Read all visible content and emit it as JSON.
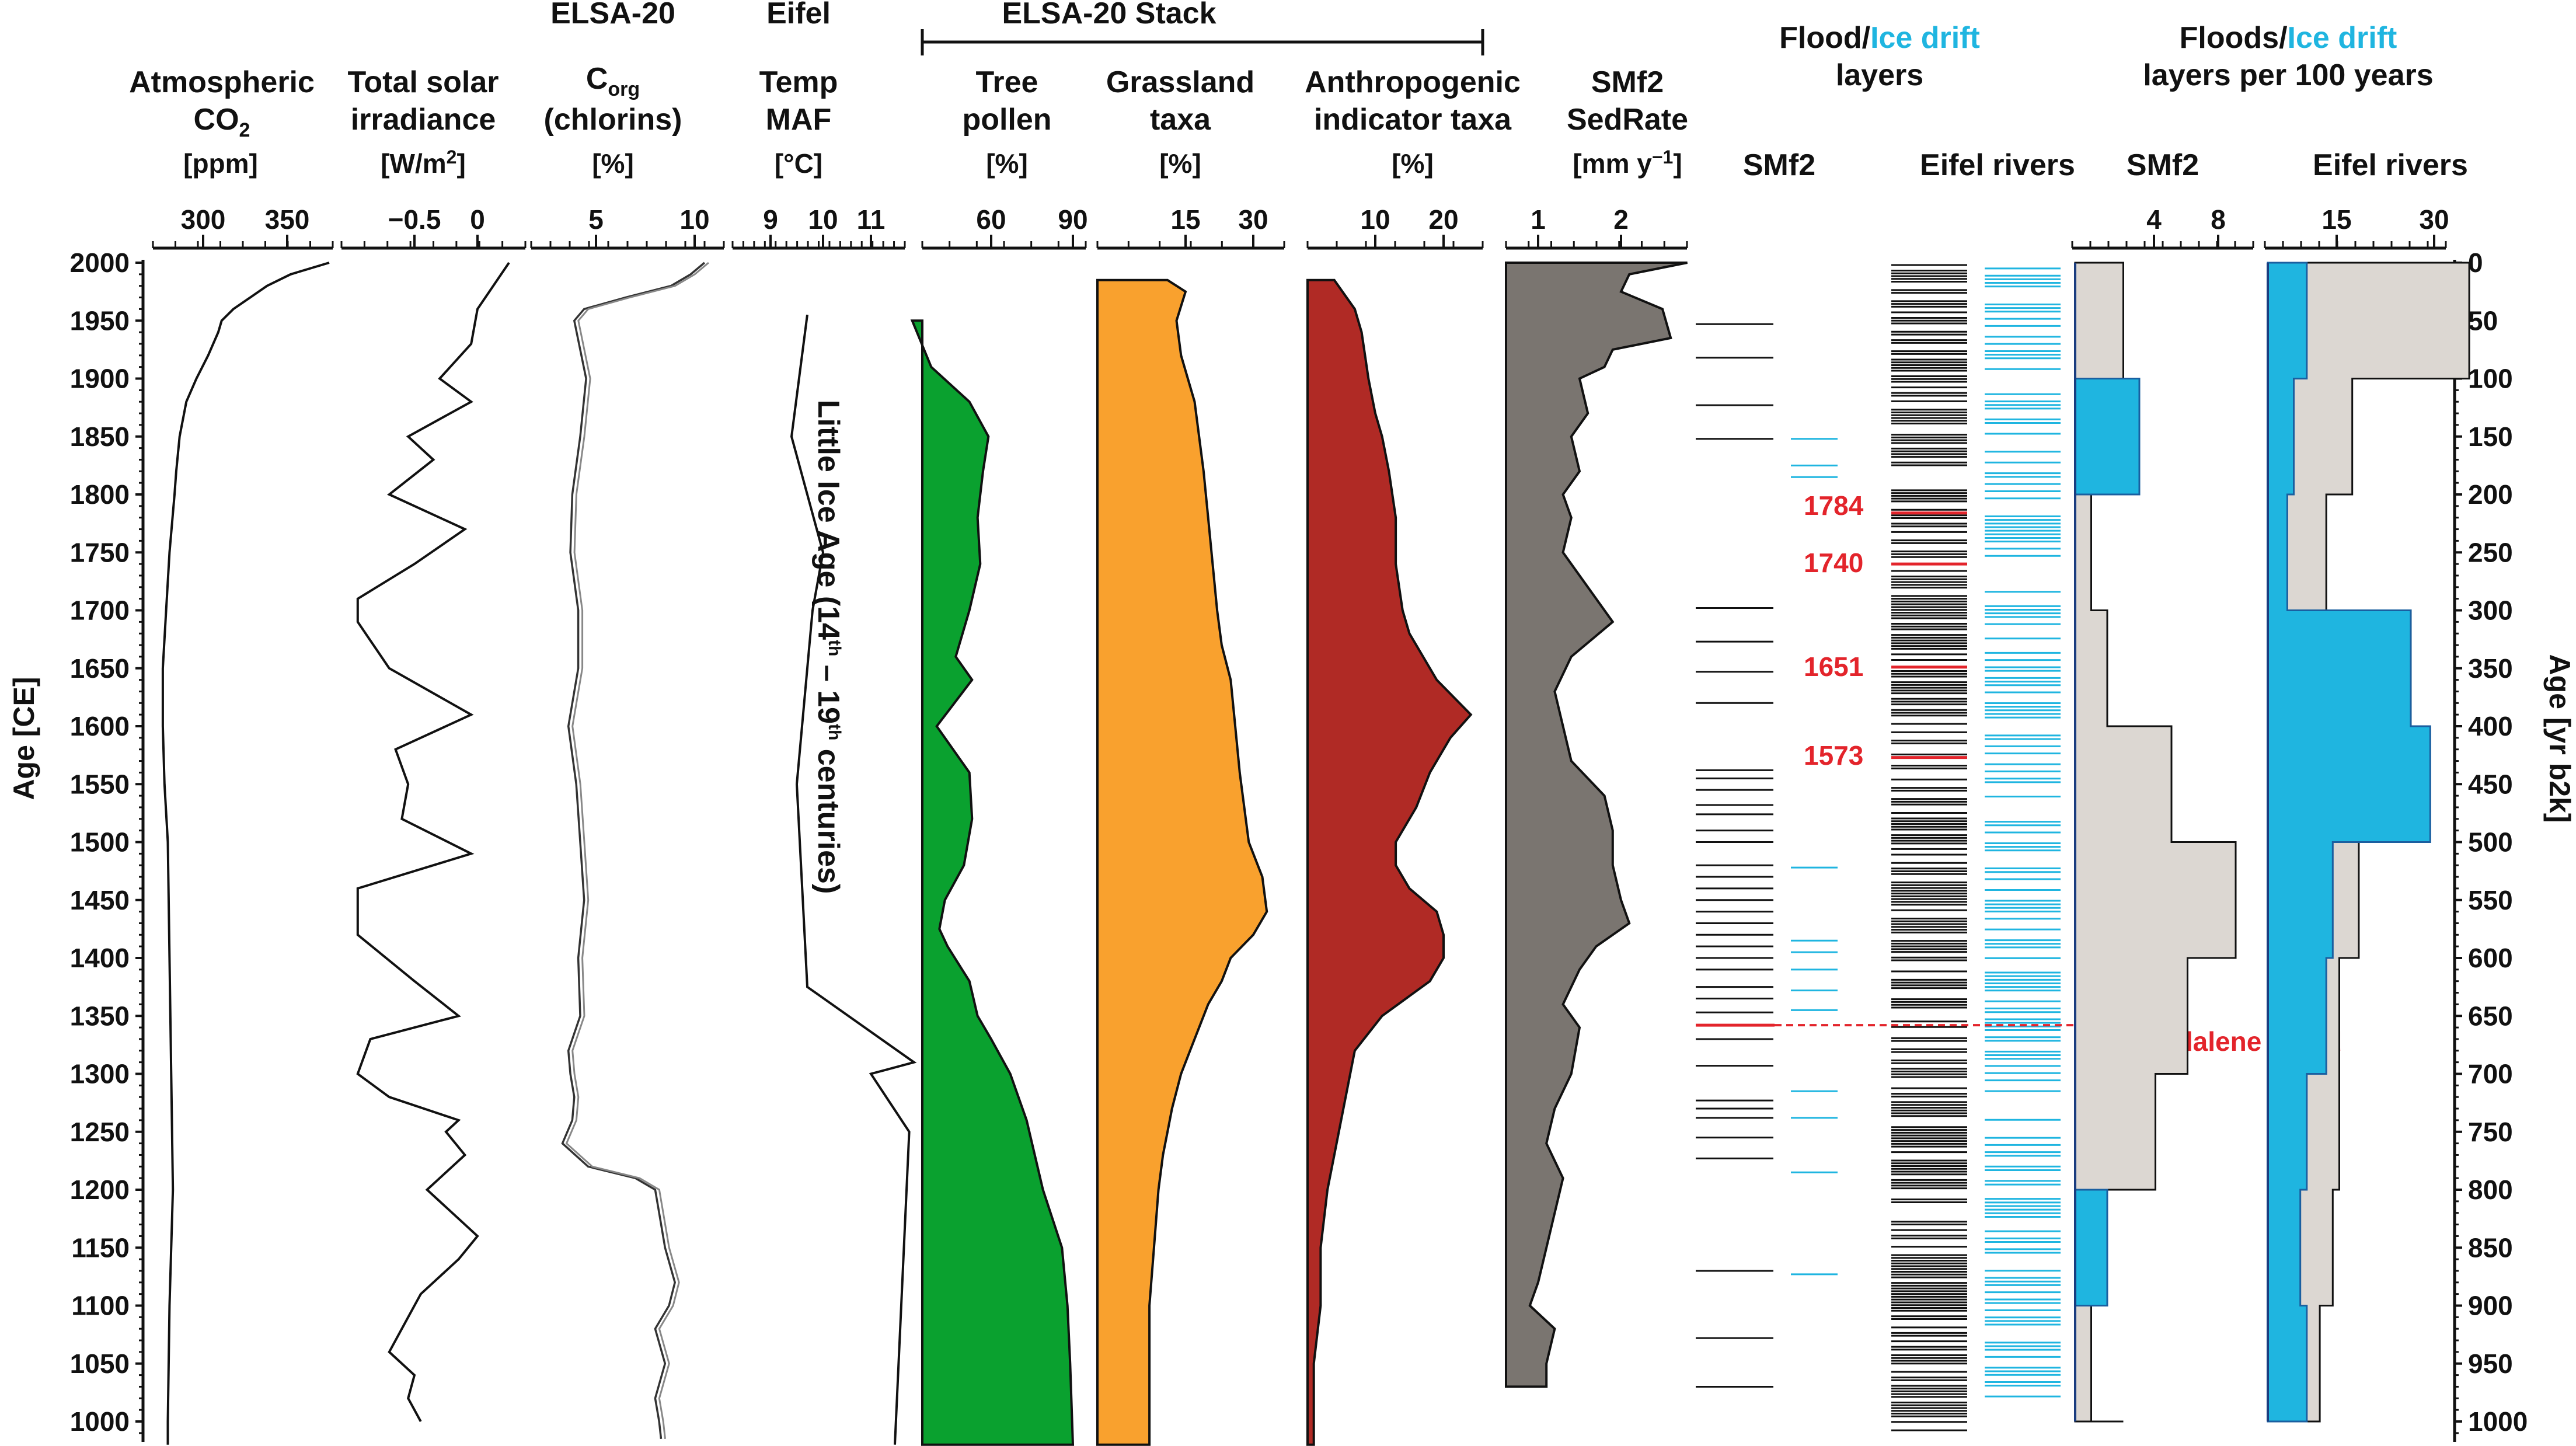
{
  "chart_data": {
    "type": "line",
    "title": "ELSA-20 Stack",
    "y_axis_left": {
      "label": "Age [CE]",
      "range": [
        980,
        2000
      ],
      "ticks": [
        "2000",
        "1950",
        "1900",
        "1850",
        "1800",
        "1750",
        "1700",
        "1650",
        "1600",
        "1550",
        "1500",
        "1450",
        "1400",
        "1350",
        "1300",
        "1250",
        "1200",
        "1150",
        "1100",
        "1050",
        "1000"
      ]
    },
    "y_axis_right": {
      "label": "Age [yr b2k]",
      "ticks": [
        "0",
        "50",
        "100",
        "150",
        "200",
        "250",
        "300",
        "350",
        "400",
        "450",
        "500",
        "550",
        "600",
        "650",
        "700",
        "750",
        "800",
        "850",
        "900",
        "950",
        "1000"
      ]
    },
    "panels": [
      {
        "id": "co2",
        "title": [
          "Atmospheric",
          "CO2"
        ],
        "unit": "[ppm]",
        "ticks": [
          "300",
          "350"
        ],
        "xlim": [
          270,
          380
        ],
        "x": [
          2000,
          1990,
          1980,
          1970,
          1960,
          1950,
          1940,
          1920,
          1900,
          1880,
          1850,
          1820,
          1800,
          1750,
          1700,
          1650,
          1600,
          1550,
          1500,
          1400,
          1300,
          1200,
          1100,
          1000,
          980
        ],
        "values": [
          375,
          352,
          338,
          328,
          318,
          311,
          309,
          303,
          296,
          290,
          286,
          284,
          283,
          280,
          278,
          276,
          276,
          277,
          279,
          280,
          281,
          282,
          280,
          279,
          279
        ]
      },
      {
        "id": "tsi",
        "title": [
          "Total solar",
          "irradiance"
        ],
        "unit": "[W/m2]",
        "ticks": [
          "-0.5",
          "0"
        ],
        "xlim": [
          -1.05,
          0.35
        ],
        "x": [
          2000,
          1960,
          1930,
          1900,
          1880,
          1850,
          1830,
          1800,
          1770,
          1740,
          1710,
          1690,
          1650,
          1610,
          1580,
          1550,
          1520,
          1490,
          1460,
          1420,
          1380,
          1350,
          1330,
          1300,
          1280,
          1260,
          1250,
          1230,
          1200,
          1180,
          1160,
          1140,
          1110,
          1090,
          1060,
          1040,
          1020,
          1000
        ],
        "values": [
          0.25,
          0.0,
          -0.05,
          -0.3,
          -0.05,
          -0.55,
          -0.35,
          -0.7,
          -0.1,
          -0.5,
          -0.95,
          -0.95,
          -0.7,
          -0.05,
          -0.65,
          -0.55,
          -0.6,
          -0.05,
          -0.95,
          -0.95,
          -0.5,
          -0.15,
          -0.85,
          -0.95,
          -0.7,
          -0.15,
          -0.25,
          -0.1,
          -0.4,
          -0.2,
          0.0,
          -0.15,
          -0.45,
          -0.55,
          -0.7,
          -0.5,
          -0.55,
          -0.45
        ]
      },
      {
        "id": "corg",
        "title": [
          "ELSA-20",
          "Corg",
          "(chlorins)"
        ],
        "unit": "[%]",
        "ticks": [
          "5",
          "10"
        ],
        "xlim": [
          2,
          11.5
        ],
        "x": [
          2000,
          1990,
          1980,
          1970,
          1960,
          1950,
          1900,
          1850,
          1800,
          1750,
          1700,
          1650,
          1600,
          1550,
          1500,
          1450,
          1400,
          1350,
          1320,
          1300,
          1280,
          1260,
          1240,
          1220,
          1210,
          1200,
          1180,
          1150,
          1120,
          1100,
          1080,
          1050,
          1020,
          1000,
          985
        ],
        "values": [
          10.5,
          9.8,
          8.8,
          6.5,
          4.4,
          3.9,
          4.5,
          4.2,
          3.8,
          3.7,
          4.1,
          4.1,
          3.6,
          4.0,
          4.2,
          4.4,
          4.1,
          4.2,
          3.6,
          3.7,
          3.9,
          3.8,
          3.3,
          4.6,
          7.0,
          8.0,
          8.2,
          8.5,
          9.0,
          8.7,
          8.0,
          8.5,
          8.0,
          8.2,
          8.3
        ]
      },
      {
        "id": "temp",
        "title": [
          "Eifel",
          "Temp",
          "MAF"
        ],
        "unit": "[°C]",
        "ticks": [
          "9",
          "10",
          "11"
        ],
        "xlim": [
          8.6,
          12
        ],
        "x": [
          1955,
          1850,
          1750,
          1700,
          1550,
          1375,
          1310,
          1300,
          1250,
          980
        ],
        "values": [
          9.7,
          9.4,
          10.0,
          9.8,
          9.5,
          9.7,
          11.9,
          11.0,
          11.8,
          11.5
        ],
        "annotation": "Little Ice Age (14th – 19th centuries)"
      },
      {
        "id": "tree",
        "title": [
          "Tree",
          "pollen"
        ],
        "unit": "[%]",
        "ticks": [
          "60",
          "90"
        ],
        "xlim": [
          30,
          100
        ],
        "color": "#0aa12f",
        "x": [
          1950,
          1910,
          1880,
          1850,
          1820,
          1780,
          1740,
          1700,
          1660,
          1640,
          1600,
          1560,
          1520,
          1480,
          1450,
          1425,
          1410,
          1380,
          1350,
          1330,
          1300,
          1260,
          1230,
          1200,
          1150,
          1100,
          1050,
          980
        ],
        "values": [
          31,
          38,
          52,
          59,
          57,
          55,
          56,
          52,
          47,
          53,
          40,
          52,
          53,
          50,
          43,
          41,
          44,
          52,
          55,
          60,
          67,
          73,
          76,
          79,
          86,
          88,
          89,
          90
        ]
      },
      {
        "id": "grass",
        "title": [
          "Grassland",
          "taxa"
        ],
        "unit": "[%]",
        "ticks": [
          "15",
          "30"
        ],
        "xlim": [
          0,
          38
        ],
        "color": "#f9a12e",
        "x": [
          1985,
          1975,
          1950,
          1920,
          1880,
          1850,
          1820,
          1780,
          1740,
          1700,
          1670,
          1640,
          1600,
          1560,
          1500,
          1470,
          1440,
          1420,
          1400,
          1380,
          1360,
          1340,
          1320,
          1300,
          1270,
          1250,
          1230,
          1200,
          1150,
          1100,
          1050,
          980
        ],
        "values": [
          11,
          15,
          13,
          14,
          17,
          18,
          19,
          20,
          21,
          22,
          23,
          25,
          26,
          27,
          29,
          32,
          33,
          30,
          25,
          23,
          20,
          18,
          16,
          14,
          12,
          11,
          10,
          9,
          8,
          7,
          7,
          7
        ]
      },
      {
        "id": "anthro",
        "title": [
          "Anthropogenic",
          "indicator taxa"
        ],
        "unit": "[%]",
        "ticks": [
          "10",
          "20"
        ],
        "xlim": [
          0,
          28
        ],
        "color": "#b02a25",
        "x": [
          1985,
          1960,
          1940,
          1900,
          1870,
          1850,
          1820,
          1780,
          1740,
          1700,
          1680,
          1660,
          1640,
          1610,
          1590,
          1560,
          1530,
          1500,
          1480,
          1460,
          1440,
          1420,
          1400,
          1380,
          1350,
          1320,
          1290,
          1260,
          1230,
          1200,
          1150,
          1100,
          1050,
          980
        ],
        "values": [
          4,
          7,
          8,
          9,
          10,
          11,
          12,
          13,
          13,
          14,
          15,
          17,
          19,
          24,
          21,
          18,
          16,
          13,
          13,
          15,
          19,
          20,
          20,
          18,
          11,
          7,
          6,
          5,
          4,
          3,
          2,
          2,
          1,
          1
        ]
      },
      {
        "id": "sedrate",
        "title": [
          "SMf2",
          "SedRate"
        ],
        "unit": "[mm y-1]",
        "ticks": [
          "1",
          "2"
        ],
        "xlim": [
          0.7,
          2.9
        ],
        "color": "#7a7570",
        "x": [
          2000,
          1990,
          1975,
          1960,
          1935,
          1925,
          1910,
          1900,
          1870,
          1850,
          1820,
          1800,
          1780,
          1750,
          1720,
          1690,
          1660,
          1630,
          1600,
          1570,
          1540,
          1510,
          1480,
          1450,
          1430,
          1410,
          1390,
          1360,
          1340,
          1300,
          1270,
          1240,
          1210,
          1180,
          1150,
          1120,
          1100,
          1080,
          1050,
          1030
        ],
        "values": [
          2.8,
          2.1,
          2.0,
          2.5,
          2.6,
          1.9,
          1.8,
          1.5,
          1.6,
          1.4,
          1.5,
          1.3,
          1.4,
          1.3,
          1.6,
          1.9,
          1.4,
          1.2,
          1.3,
          1.4,
          1.8,
          1.9,
          1.9,
          2.0,
          2.1,
          1.7,
          1.5,
          1.3,
          1.5,
          1.4,
          1.2,
          1.1,
          1.3,
          1.2,
          1.1,
          1.0,
          0.9,
          1.2,
          1.1,
          1.1
        ]
      },
      {
        "id": "layers",
        "title": [
          "Flood/Ice drift",
          "layers"
        ],
        "title_highlight": "Ice drift",
        "columns": [
          "SMf2",
          "Eifel rivers"
        ],
        "smf2_flood": [
          1947,
          1918,
          1877,
          1848,
          1702,
          1673,
          1647,
          1620,
          1562,
          1555,
          1545,
          1532,
          1524,
          1510,
          1500,
          1480,
          1470,
          1460,
          1450,
          1440,
          1430,
          1420,
          1410,
          1400,
          1390,
          1375,
          1365,
          1353,
          1330,
          1307,
          1277,
          1270,
          1262,
          1245,
          1227,
          1130,
          1072,
          1030
        ],
        "smf2_icedrift": [
          1848,
          1825,
          1815,
          1478,
          1415,
          1405,
          1390,
          1372,
          1355,
          1285,
          1262,
          1215,
          1127
        ],
        "annotated_events": [
          {
            "year": "1784",
            "color": "#e3242b"
          },
          {
            "year": "1740",
            "color": "#e3242b"
          },
          {
            "year": "1651",
            "color": "#e3242b"
          },
          {
            "year": "1573",
            "color": "#e3242b"
          }
        ],
        "event_1342": {
          "year": "1342",
          "label": "St. Magdalene Flood"
        }
      },
      {
        "id": "rates",
        "title": [
          "Floods/Ice drift",
          "layers per 100 years"
        ],
        "title_highlight": "Ice drift",
        "type": "step",
        "subpanels": [
          {
            "name": "SMf2",
            "ticks": [
              "4",
              "8"
            ],
            "xlim": [
              0,
              10
            ],
            "bins_start": [
              2000,
              1900,
              1800,
              1700,
              1600,
              1500,
              1400,
              1300,
              1200,
              1100,
              1000
            ],
            "floods": [
              3,
              1,
              1,
              2,
              6,
              10,
              7,
              5,
              1,
              1,
              3
            ],
            "ice_drift": [
              0,
              4,
              0,
              0,
              0,
              0,
              0,
              0,
              2,
              0,
              0
            ]
          },
          {
            "name": "Eifel rivers",
            "ticks": [
              "15",
              "30"
            ],
            "xlim": [
              0,
              32
            ],
            "bins_start": [
              2000,
              1900,
              1800,
              1700,
              1600,
              1500,
              1400,
              1300,
              1200,
              1100,
              1000
            ],
            "floods": [
              31,
              13,
              9,
              22,
              22,
              14,
              11,
              11,
              10,
              8,
              5
            ],
            "ice_drift": [
              6,
              4,
              3,
              22,
              25,
              10,
              9,
              6,
              5,
              6,
              4
            ]
          }
        ]
      }
    ]
  },
  "colors": {
    "cyan": "#1fb5e0",
    "red": "#e3242b",
    "beige": "#dcd7d2"
  }
}
